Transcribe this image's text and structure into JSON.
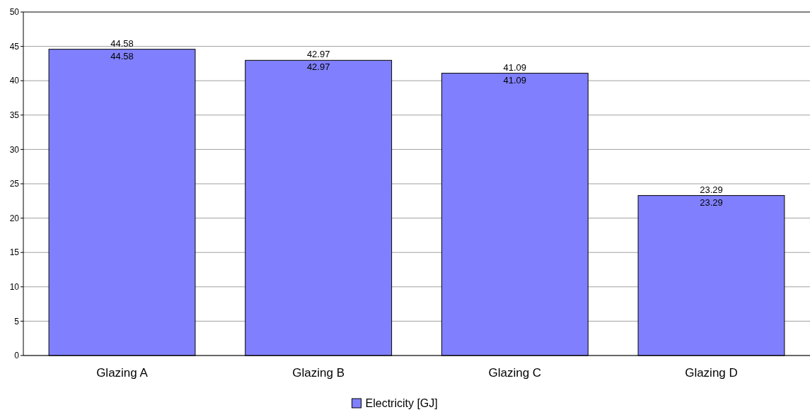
{
  "chart_data": {
    "type": "bar",
    "categories": [
      "Glazing A",
      "Glazing B",
      "Glazing C",
      "Glazing D"
    ],
    "series": [
      {
        "name": "Electricity [GJ]",
        "color": "#8080ff",
        "values": [
          44.58,
          42.97,
          41.09,
          23.29
        ]
      }
    ],
    "ylim": [
      0,
      50
    ],
    "yticks": [
      0,
      5,
      10,
      15,
      20,
      25,
      30,
      35,
      40,
      45,
      50
    ],
    "grid": "y",
    "legend": "bottom",
    "data_labels": true,
    "annotations": [
      {
        "text": "44.58",
        "x": "Glazing A",
        "y": 44.58
      },
      {
        "text": "42.97",
        "x": "Glazing B",
        "y": 42.97
      },
      {
        "text": "41.09",
        "x": "Glazing C",
        "y": 41.09
      },
      {
        "text": "23.29",
        "x": "Glazing D",
        "y": 23.29
      }
    ]
  }
}
